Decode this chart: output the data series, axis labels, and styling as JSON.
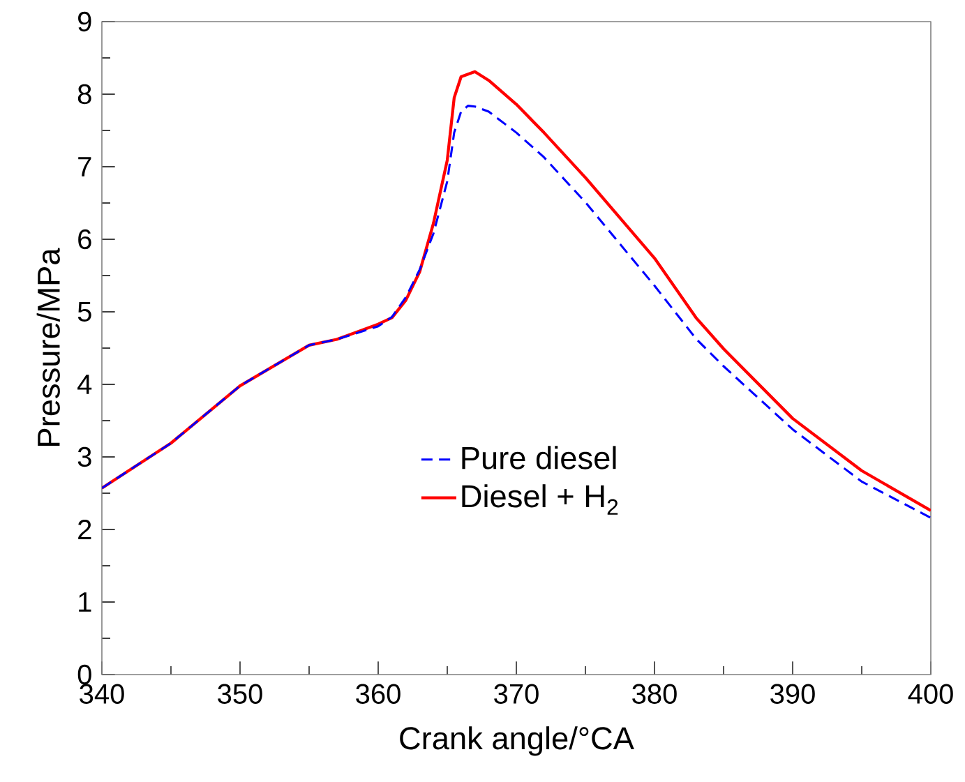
{
  "chart_data": {
    "type": "line",
    "xlabel": "Crank angle/°CA",
    "ylabel": "Pressure/MPa",
    "xlim": [
      340,
      400
    ],
    "ylim": [
      0,
      9
    ],
    "xticks": [
      340,
      350,
      360,
      370,
      380,
      390,
      400
    ],
    "yticks": [
      0,
      1,
      2,
      3,
      4,
      5,
      6,
      7,
      8,
      9
    ],
    "grid": false,
    "legend": "right",
    "marker": "none",
    "series": [
      {
        "name": "Pure diesel",
        "color": "#0000ff",
        "line_style": "dashed",
        "x": [
          340,
          345,
          350,
          355,
          357,
          360,
          361,
          362,
          363,
          364,
          365,
          365.5,
          366,
          366.5,
          367,
          368,
          370,
          372,
          375,
          380,
          383,
          385,
          390,
          395,
          400
        ],
        "values": [
          2.57,
          3.19,
          3.98,
          4.54,
          4.62,
          4.8,
          4.93,
          5.2,
          5.58,
          6.08,
          6.8,
          7.47,
          7.76,
          7.84,
          7.83,
          7.76,
          7.47,
          7.13,
          6.51,
          5.36,
          4.63,
          4.25,
          3.38,
          2.66,
          2.16
        ]
      },
      {
        "name": "Diesel + H$_{2}$",
        "color": "#ff0000",
        "line_style": "solid",
        "x": [
          340,
          345,
          350,
          355,
          357,
          360,
          361,
          362,
          363,
          364,
          365,
          365.5,
          366,
          367,
          368,
          370,
          372,
          375,
          380,
          383,
          385,
          390,
          395,
          400
        ],
        "values": [
          2.57,
          3.19,
          3.98,
          4.54,
          4.62,
          4.83,
          4.92,
          5.16,
          5.55,
          6.22,
          7.09,
          7.95,
          8.24,
          8.31,
          8.19,
          7.86,
          7.47,
          6.85,
          5.74,
          4.92,
          4.49,
          3.53,
          2.81,
          2.26
        ]
      }
    ]
  }
}
